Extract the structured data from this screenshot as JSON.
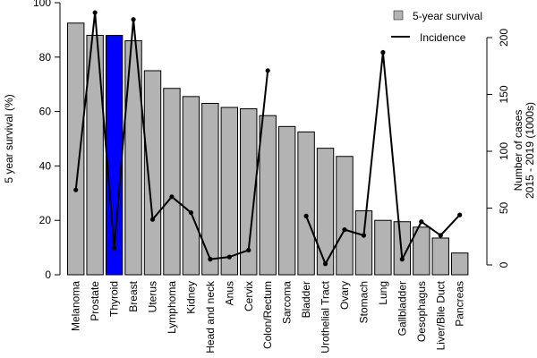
{
  "chart_data": {
    "type": "bar",
    "categories": [
      "Melanoma",
      "Prostate",
      "Thyroid",
      "Breast",
      "Uterus",
      "Lymphoma",
      "Kidney",
      "Head and neck",
      "Anus",
      "Cervix",
      "Colon/Rectum",
      "Sarcoma",
      "Bladder",
      "Urothelial Tract",
      "Ovary",
      "Stomach",
      "Lung",
      "Gallbladder",
      "Oesophagus",
      "Liver/Bile Duct",
      "Pancreas"
    ],
    "series": [
      {
        "name": "5-year survival",
        "kind": "bar",
        "axis": "left",
        "color": "#b3b3b3",
        "values": [
          92.5,
          88,
          88,
          86,
          75,
          68.5,
          65.5,
          63,
          61.5,
          61,
          58.5,
          54.5,
          52.5,
          46.5,
          43.5,
          23.5,
          20,
          19.5,
          17.5,
          13.5,
          8
        ]
      },
      {
        "name": "Incidence",
        "kind": "line",
        "axis": "right",
        "color": "#000000",
        "values": [
          66,
          222,
          15,
          216,
          40,
          60,
          46,
          5,
          7,
          13,
          171,
          null,
          43,
          1,
          31,
          26,
          187,
          5,
          38,
          26,
          44
        ]
      }
    ],
    "highlight": {
      "category": "Thyroid",
      "color": "#0000ff"
    },
    "ylabel": "5 year survival (%)",
    "ylim": [
      0,
      100
    ],
    "yticks": [
      0,
      20,
      40,
      60,
      80,
      100
    ],
    "y2label_line1": "Number of cases",
    "y2label_line2": "2015 - 2019 (1000s)",
    "y2lim": [
      0,
      240
    ],
    "y2ticks": [
      0,
      50,
      100,
      150,
      200
    ],
    "legend": {
      "position": "top-right",
      "items": [
        "5-year survival",
        "Incidence"
      ]
    },
    "grid": false
  }
}
